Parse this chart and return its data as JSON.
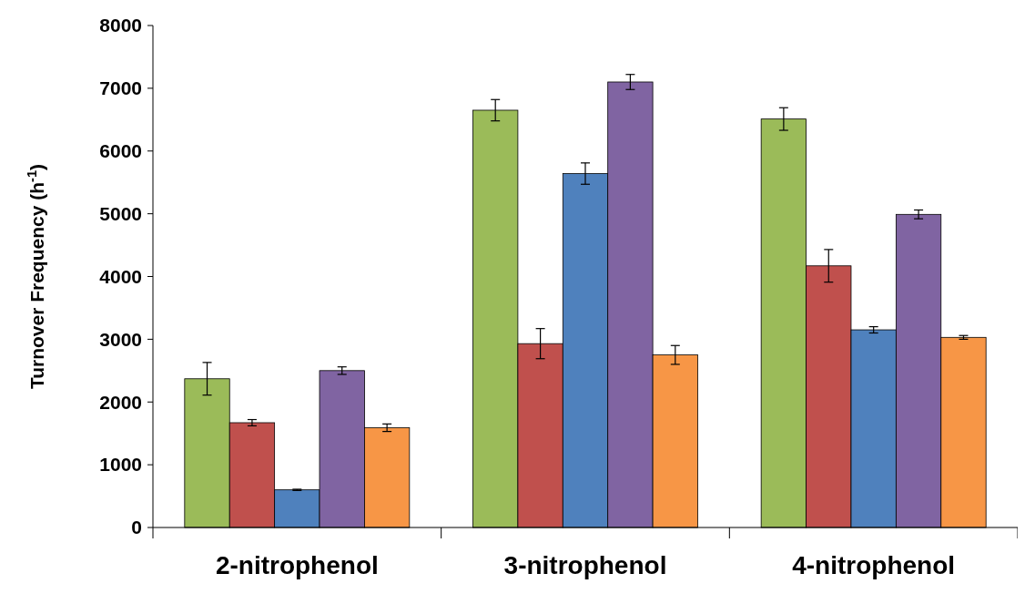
{
  "chart_data": {
    "type": "bar",
    "ylabel": "Turnover Frequency (h$^{-1}$)",
    "categories": [
      "2-nitrophenol",
      "3-nitrophenol",
      "4-nitrophenol"
    ],
    "series": [
      {
        "color": "#9bbb59",
        "values": [
          2370,
          6650,
          6510
        ],
        "errors": [
          260,
          170,
          180
        ]
      },
      {
        "color": "#c0504d",
        "values": [
          1670,
          2930,
          4170
        ],
        "errors": [
          50,
          240,
          260
        ]
      },
      {
        "color": "#4f81bd",
        "values": [
          600,
          5640,
          3150
        ],
        "errors": [
          10,
          170,
          50
        ]
      },
      {
        "color": "#8064a2",
        "values": [
          2500,
          7100,
          4990
        ],
        "errors": [
          60,
          120,
          70
        ]
      },
      {
        "color": "#f79646",
        "values": [
          1590,
          2750,
          3030
        ],
        "errors": [
          60,
          150,
          30
        ]
      }
    ],
    "ylim": [
      0,
      8000
    ],
    "yticks": [
      0,
      1000,
      2000,
      3000,
      4000,
      5000,
      6000,
      7000,
      8000
    ]
  }
}
